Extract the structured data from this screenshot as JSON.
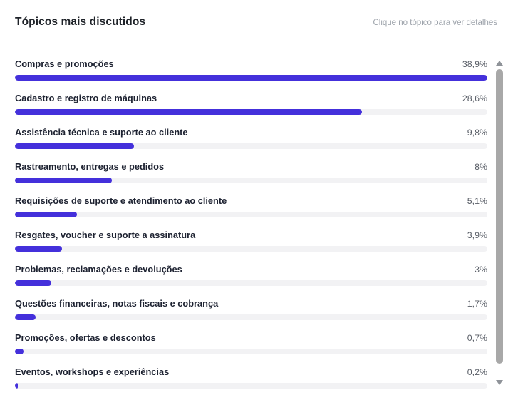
{
  "header": {
    "title": "Tópicos mais discutidos",
    "hint": "Clique no tópico para ver detalhes"
  },
  "colors": {
    "bar_fill": "#4430db",
    "bar_track": "#f2f2f4",
    "title_text": "#1f2329",
    "label_text": "#1d2231",
    "percent_text": "#585d66",
    "hint_text": "#9da3ab",
    "scrollbar_thumb": "#a8a8a8",
    "scrollbar_arrow": "#8f9399"
  },
  "chart_data": {
    "type": "bar",
    "orientation": "horizontal",
    "title": "Tópicos mais discutidos",
    "categories": [
      "Compras e promoções",
      "Cadastro e registro de máquinas",
      "Assistência técnica e suporte ao cliente",
      "Rastreamento, entregas e pedidos",
      "Requisições de suporte e atendimento ao cliente",
      "Resgates, voucher e suporte a assinatura",
      "Problemas, reclamações e devoluções",
      "Questões financeiras, notas fiscais e cobrança",
      "Promoções, ofertas e descontos",
      "Eventos, workshops e experiências"
    ],
    "values": [
      38.9,
      28.6,
      9.8,
      8,
      5.1,
      3.9,
      3,
      1.7,
      0.7,
      0.2
    ],
    "value_labels": [
      "38,9%",
      "28,6%",
      "9,8%",
      "8%",
      "5,1%",
      "3,9%",
      "3%",
      "1,7%",
      "0,7%",
      "0,2%"
    ],
    "max_value": 38.9,
    "unit": "%",
    "grid": false,
    "legend": false,
    "bars_scaled_to_max": true
  }
}
